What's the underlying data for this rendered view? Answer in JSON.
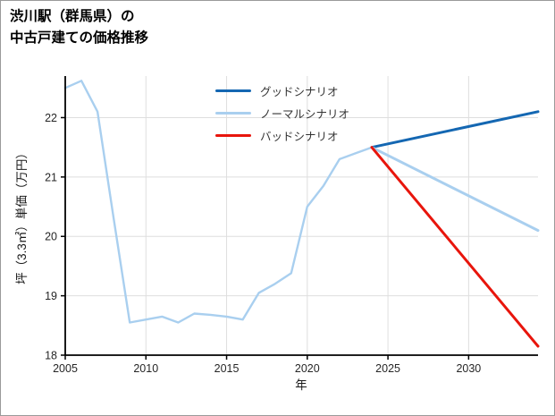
{
  "page": {
    "title_line1": "渋川駅（群馬県）の",
    "title_line2": "中古戸建ての価格推移"
  },
  "chart_data": {
    "type": "line",
    "title": "渋川駅（群馬県）の中古戸建ての価格推移",
    "xlabel": "年",
    "ylabel": "坪（3.3㎡）単価（万円）",
    "xlim": [
      2005,
      2034.3
    ],
    "ylim": [
      18,
      22.7
    ],
    "xticks": [
      2005,
      2010,
      2015,
      2020,
      2025,
      2030
    ],
    "yticks": [
      18,
      19,
      20,
      21,
      22
    ],
    "grid": true,
    "grid_color": "#dedede",
    "axis_color": "#000000",
    "tick_label_color": "#262626",
    "legend_position": "top-center-inside",
    "series": [
      {
        "key": "history",
        "in_legend": false,
        "color": "#a9cfef",
        "line_width": 2.4,
        "x": [
          2005,
          2006,
          2007,
          2008,
          2009,
          2010,
          2011,
          2012,
          2013,
          2014,
          2015,
          2016,
          2017,
          2018,
          2019,
          2020,
          2021,
          2022,
          2023,
          2024
        ],
        "y": [
          22.5,
          22.62,
          22.1,
          20.3,
          18.55,
          18.6,
          18.65,
          18.55,
          18.7,
          18.68,
          18.65,
          18.6,
          19.05,
          19.2,
          19.38,
          20.5,
          20.85,
          21.3,
          21.4,
          21.5
        ]
      },
      {
        "key": "good",
        "name": "グッドシナリオ",
        "in_legend": true,
        "color": "#1467b2",
        "line_width": 3,
        "x": [
          2024,
          2034.3
        ],
        "y": [
          21.5,
          22.1
        ]
      },
      {
        "key": "normal",
        "name": "ノーマルシナリオ",
        "in_legend": true,
        "color": "#a9cfef",
        "line_width": 3,
        "x": [
          2024,
          2034.3
        ],
        "y": [
          21.5,
          20.1
        ]
      },
      {
        "key": "bad",
        "name": "バッドシナリオ",
        "in_legend": true,
        "color": "#e8150c",
        "line_width": 3,
        "x": [
          2024,
          2034.3
        ],
        "y": [
          21.5,
          18.15
        ]
      }
    ]
  }
}
